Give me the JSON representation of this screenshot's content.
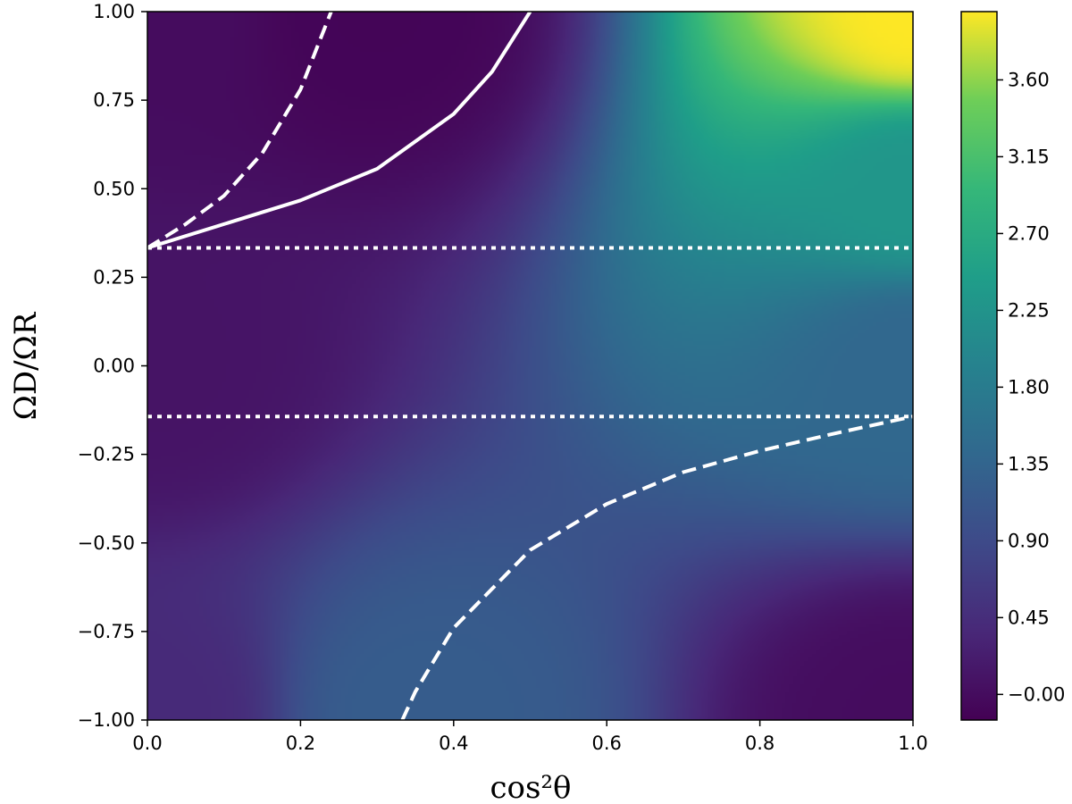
{
  "chart_data": {
    "type": "heatmap",
    "title": "",
    "xlabel": "cos²θ",
    "ylabel": "ΩD/ΩR",
    "xlim": [
      0.0,
      1.0
    ],
    "ylim": [
      -1.0,
      1.0
    ],
    "x_ticks": [
      "0.0",
      "0.2",
      "0.4",
      "0.6",
      "0.8",
      "1.0"
    ],
    "y_ticks": [
      "−1.00",
      "−0.75",
      "−0.50",
      "−0.25",
      "0.00",
      "0.25",
      "0.50",
      "0.75",
      "1.00"
    ],
    "colormap": "viridis",
    "colorbar": {
      "range": [
        -0.15,
        4.0
      ],
      "ticks": [
        "−0.00",
        "0.45",
        "0.90",
        "1.35",
        "1.80",
        "2.25",
        "2.70",
        "3.15",
        "3.60"
      ]
    },
    "field_samples": [
      {
        "x": 0.0,
        "y": 1.0,
        "value": 0.0
      },
      {
        "x": 0.3,
        "y": 1.0,
        "value": -0.1
      },
      {
        "x": 1.0,
        "y": 1.0,
        "value": 4.0
      },
      {
        "x": 1.0,
        "y": 0.5,
        "value": 2.3
      },
      {
        "x": 1.0,
        "y": 0.0,
        "value": 1.4
      },
      {
        "x": 0.0,
        "y": 0.0,
        "value": 0.1
      },
      {
        "x": 0.35,
        "y": -1.0,
        "value": 1.2
      },
      {
        "x": 1.0,
        "y": -1.0,
        "value": 0.0
      },
      {
        "x": 0.0,
        "y": -1.0,
        "value": 0.4
      }
    ],
    "curves": [
      {
        "style": "solid",
        "color": "#ffffff",
        "points": [
          [
            0.0,
            0.333
          ],
          [
            0.1,
            0.4
          ],
          [
            0.2,
            0.467
          ],
          [
            0.3,
            0.556
          ],
          [
            0.4,
            0.711
          ],
          [
            0.45,
            0.83
          ],
          [
            0.5,
            1.0
          ]
        ]
      },
      {
        "style": "dashed",
        "color": "#ffffff",
        "points": [
          [
            0.0,
            0.333
          ],
          [
            0.05,
            0.4
          ],
          [
            0.1,
            0.48
          ],
          [
            0.15,
            0.6
          ],
          [
            0.2,
            0.78
          ],
          [
            0.24,
            1.0
          ]
        ]
      },
      {
        "style": "dashed",
        "color": "#ffffff",
        "points": [
          [
            0.333,
            -1.0
          ],
          [
            0.35,
            -0.92
          ],
          [
            0.4,
            -0.74
          ],
          [
            0.5,
            -0.52
          ],
          [
            0.6,
            -0.39
          ],
          [
            0.7,
            -0.3
          ],
          [
            0.8,
            -0.24
          ],
          [
            0.9,
            -0.19
          ],
          [
            1.0,
            -0.143
          ]
        ]
      },
      {
        "style": "dotted",
        "color": "#ffffff",
        "points": [
          [
            0.0,
            0.333
          ],
          [
            1.0,
            0.333
          ]
        ]
      },
      {
        "style": "dotted",
        "color": "#ffffff",
        "points": [
          [
            0.0,
            -0.143
          ],
          [
            1.0,
            -0.143
          ]
        ]
      }
    ]
  }
}
